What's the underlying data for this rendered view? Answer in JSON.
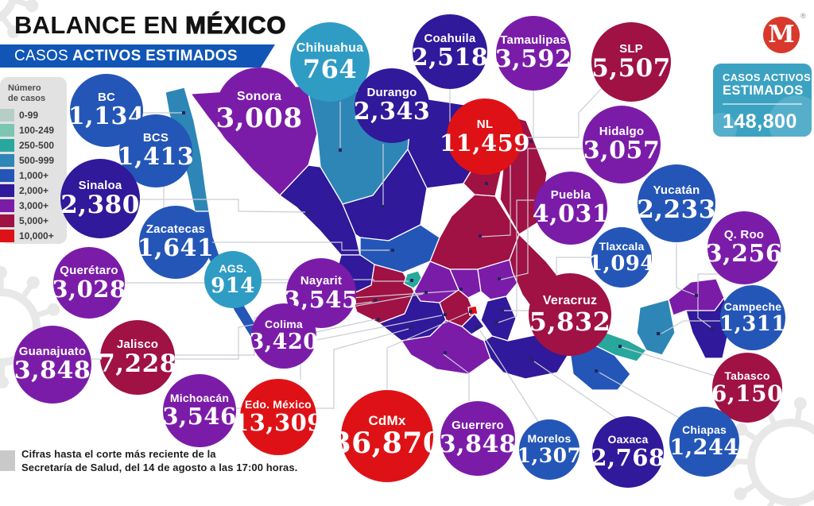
{
  "header": {
    "title_prefix": "BALANCE EN ",
    "title_emphasis": "MÉXICO",
    "banner_prefix": "CASOS",
    "banner_emphasis": "ACTIVOS ESTIMADOS"
  },
  "legend": {
    "title_line1": "Número",
    "title_line2": "de casos",
    "items": [
      {
        "label": "0-99",
        "color": "#b7cec7"
      },
      {
        "label": "100-249",
        "color": "#7cc5b1"
      },
      {
        "label": "250-500",
        "color": "#28a89c"
      },
      {
        "label": "500-999",
        "color": "#2d86b6"
      },
      {
        "label": "1,000+",
        "color": "#2456b8"
      },
      {
        "label": "2,000+",
        "color": "#30199a"
      },
      {
        "label": "3,000+",
        "color": "#7b1ca9"
      },
      {
        "label": "5,000+",
        "color": "#a01144"
      },
      {
        "label": "10,000+",
        "color": "#de1216"
      }
    ]
  },
  "logo": {
    "letter": "M",
    "registered_mark": "®",
    "color": "#d8392c"
  },
  "summary": {
    "label_line1": "CASOS ACTIVOS",
    "label_line2": "ESTIMADOS",
    "total": "148,800",
    "background": "#3ba2c2"
  },
  "footer": {
    "line1": "Cifras hasta el corte más reciente de la",
    "line2": "Secretaría de Salud, del 14 de agosto a las 17:00 horas."
  },
  "palette": {
    "blue": "#2456b8",
    "teal": "#2f9cc4",
    "indigo": "#30199a",
    "purple": "#7b1ca9",
    "maroon": "#a01144",
    "red": "#de1216"
  },
  "states": [
    {
      "name": "BC",
      "value": "1,134",
      "level": "blue"
    },
    {
      "name": "BCS",
      "value": "1,413",
      "level": "blue"
    },
    {
      "name": "Sonora",
      "value": "3,008",
      "level": "purple"
    },
    {
      "name": "Chihuahua",
      "value": "764",
      "level": "teal"
    },
    {
      "name": "Durango",
      "value": "2,343",
      "level": "indigo"
    },
    {
      "name": "Coahuila",
      "value": "2,518",
      "level": "indigo"
    },
    {
      "name": "Tamaulipas",
      "value": "3,592",
      "level": "purple"
    },
    {
      "name": "NL",
      "value": "11,459",
      "level": "red"
    },
    {
      "name": "SLP",
      "value": "5,507",
      "level": "maroon"
    },
    {
      "name": "Hidalgo",
      "value": "3,057",
      "level": "purple"
    },
    {
      "name": "Sinaloa",
      "value": "2,380",
      "level": "indigo"
    },
    {
      "name": "Zacatecas",
      "value": "1,641",
      "level": "blue"
    },
    {
      "name": "AGS.",
      "value": "914",
      "level": "teal"
    },
    {
      "name": "Querétaro",
      "value": "3,028",
      "level": "purple"
    },
    {
      "name": "Nayarit",
      "value": "3,545",
      "level": "purple"
    },
    {
      "name": "Puebla",
      "value": "4,031",
      "level": "purple"
    },
    {
      "name": "Yucatán",
      "value": "2,233",
      "level": "blue"
    },
    {
      "name": "Tlaxcala",
      "value": "1,094",
      "level": "blue"
    },
    {
      "name": "Q. Roo",
      "value": "3,256",
      "level": "purple"
    },
    {
      "name": "Campeche",
      "value": "1,311",
      "level": "blue"
    },
    {
      "name": "Veracruz",
      "value": "5,832",
      "level": "maroon"
    },
    {
      "name": "Guanajuato",
      "value": "3,848",
      "level": "purple"
    },
    {
      "name": "Jalisco",
      "value": "7,228",
      "level": "maroon"
    },
    {
      "name": "Colima",
      "value": "3,420",
      "level": "purple"
    },
    {
      "name": "Michoacán",
      "value": "3,546",
      "level": "purple"
    },
    {
      "name": "Edo. México",
      "value": "13,309",
      "level": "red"
    },
    {
      "name": "CdMx",
      "value": "36,870",
      "level": "red"
    },
    {
      "name": "Guerrero",
      "value": "3,848",
      "level": "purple"
    },
    {
      "name": "Morelos",
      "value": "1,307",
      "level": "blue"
    },
    {
      "name": "Oaxaca",
      "value": "2,768",
      "level": "indigo"
    },
    {
      "name": "Tabasco",
      "value": "6,150",
      "level": "maroon"
    },
    {
      "name": "Chiapas",
      "value": "1,244",
      "level": "blue"
    }
  ],
  "map_regions": [
    {
      "id": "bc",
      "color": "#2d86b6"
    },
    {
      "id": "bcs",
      "color": "#2456b8"
    },
    {
      "id": "sonora",
      "color": "#7b1ca9"
    },
    {
      "id": "chihuahua",
      "color": "#2d86b6"
    },
    {
      "id": "coahuila",
      "color": "#30199a"
    },
    {
      "id": "nl",
      "color": "#a01144"
    },
    {
      "id": "tamaulipas",
      "color": "#a01144"
    },
    {
      "id": "sinaloa",
      "color": "#30199a"
    },
    {
      "id": "durango",
      "color": "#30199a"
    },
    {
      "id": "zacatecas",
      "color": "#2456b8"
    },
    {
      "id": "slp",
      "color": "#a01144"
    },
    {
      "id": "nayarit",
      "color": "#30199a"
    },
    {
      "id": "jalisco",
      "color": "#a01144"
    },
    {
      "id": "ags",
      "color": "#28a89c"
    },
    {
      "id": "guanajuato",
      "color": "#7b1ca9"
    },
    {
      "id": "queretaro",
      "color": "#7b1ca9"
    },
    {
      "id": "hidalgo",
      "color": "#7b1ca9"
    },
    {
      "id": "michoacan",
      "color": "#30199a"
    },
    {
      "id": "edomex",
      "color": "#a01144"
    },
    {
      "id": "cdmx",
      "color": "#de1216"
    },
    {
      "id": "morelos",
      "color": "#30199a"
    },
    {
      "id": "tlaxcala",
      "color": "#28a89c"
    },
    {
      "id": "puebla",
      "color": "#30199a"
    },
    {
      "id": "veracruz",
      "color": "#a01144"
    },
    {
      "id": "guerrero",
      "color": "#7b1ca9"
    },
    {
      "id": "oaxaca",
      "color": "#30199a"
    },
    {
      "id": "chiapas",
      "color": "#2456b8"
    },
    {
      "id": "tabasco",
      "color": "#28a89c"
    },
    {
      "id": "campeche",
      "color": "#2d86b6"
    },
    {
      "id": "yucatan",
      "color": "#7b1ca9"
    },
    {
      "id": "qroo",
      "color": "#30199a"
    }
  ]
}
